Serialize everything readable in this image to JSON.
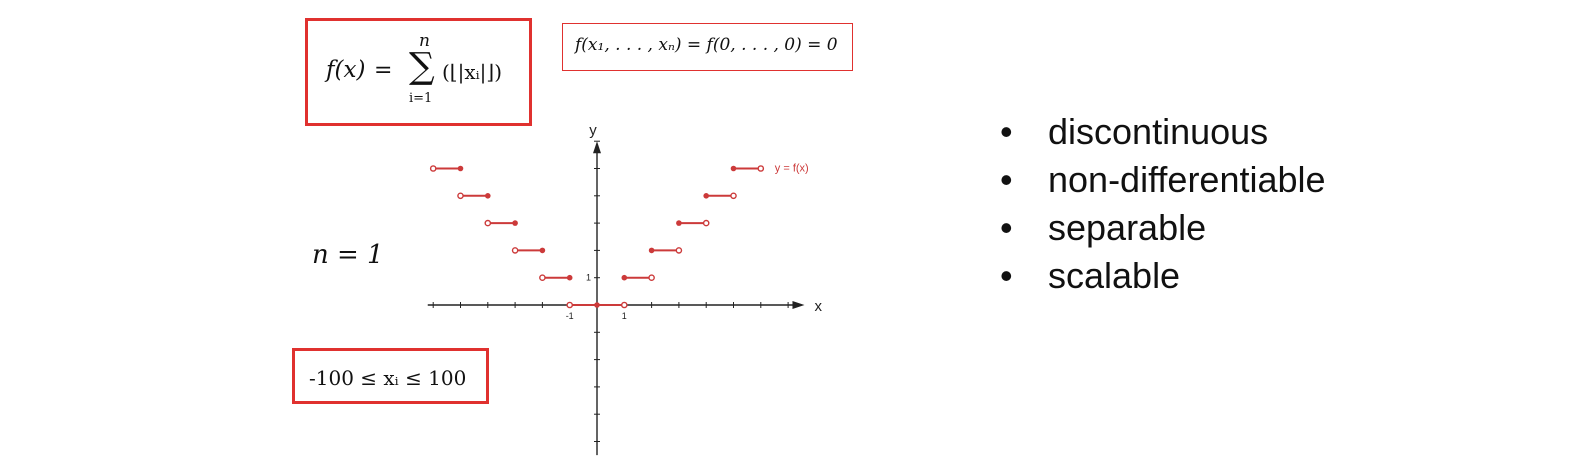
{
  "formula": {
    "lhs": "f(x)",
    "eq": "=",
    "sum_upper": "n",
    "sum_symbol": "∑",
    "sum_lower": "i=1",
    "term": "(⌊|xᵢ|⌋)"
  },
  "optimum": {
    "text": "f(x₁, . . . , xₙ) = f(0, . . . , 0) = 0"
  },
  "domain": {
    "text": "-100 ≤ xᵢ ≤ 100"
  },
  "n_label": "n = 1",
  "properties": [
    "discontinuous",
    "non-differentiable",
    "separable",
    "scalable"
  ],
  "colors": {
    "accent": "#e0312f",
    "axis": "#222222",
    "step": "#cc3a3a"
  },
  "chart_data": {
    "type": "line",
    "title": "",
    "xlabel": "x",
    "ylabel": "y",
    "legend": {
      "entries": [
        "y = f(x)"
      ],
      "placement": "top-right"
    },
    "x_tick_labels": [
      {
        "x": -1,
        "label": "-1"
      },
      {
        "x": 1,
        "label": "1"
      }
    ],
    "y_tick_labels": [
      {
        "y": 1,
        "label": "1"
      }
    ],
    "xlim": [
      -6.2,
      7.6
    ],
    "ylim": [
      -5.5,
      6.0
    ],
    "grid": false,
    "series": [
      {
        "name": "y = f(x)",
        "steps": [
          {
            "x0": -6,
            "x1": -5,
            "y": 5,
            "left": "open",
            "right": "closed"
          },
          {
            "x0": -5,
            "x1": -4,
            "y": 4,
            "left": "open",
            "right": "closed"
          },
          {
            "x0": -4,
            "x1": -3,
            "y": 3,
            "left": "open",
            "right": "closed"
          },
          {
            "x0": -3,
            "x1": -2,
            "y": 2,
            "left": "open",
            "right": "closed"
          },
          {
            "x0": -2,
            "x1": -1,
            "y": 1,
            "left": "open",
            "right": "closed"
          },
          {
            "x0": -1,
            "x1": 0,
            "y": 0,
            "left": "open",
            "right": "none"
          },
          {
            "x0": 0,
            "x1": 1,
            "y": 0,
            "left": "closed",
            "right": "open"
          },
          {
            "x0": 1,
            "x1": 2,
            "y": 1,
            "left": "closed",
            "right": "open"
          },
          {
            "x0": 2,
            "x1": 3,
            "y": 2,
            "left": "closed",
            "right": "open"
          },
          {
            "x0": 3,
            "x1": 4,
            "y": 3,
            "left": "closed",
            "right": "open"
          },
          {
            "x0": 4,
            "x1": 5,
            "y": 4,
            "left": "closed",
            "right": "open"
          },
          {
            "x0": 5,
            "x1": 6,
            "y": 5,
            "left": "closed",
            "right": "open"
          }
        ]
      }
    ]
  }
}
